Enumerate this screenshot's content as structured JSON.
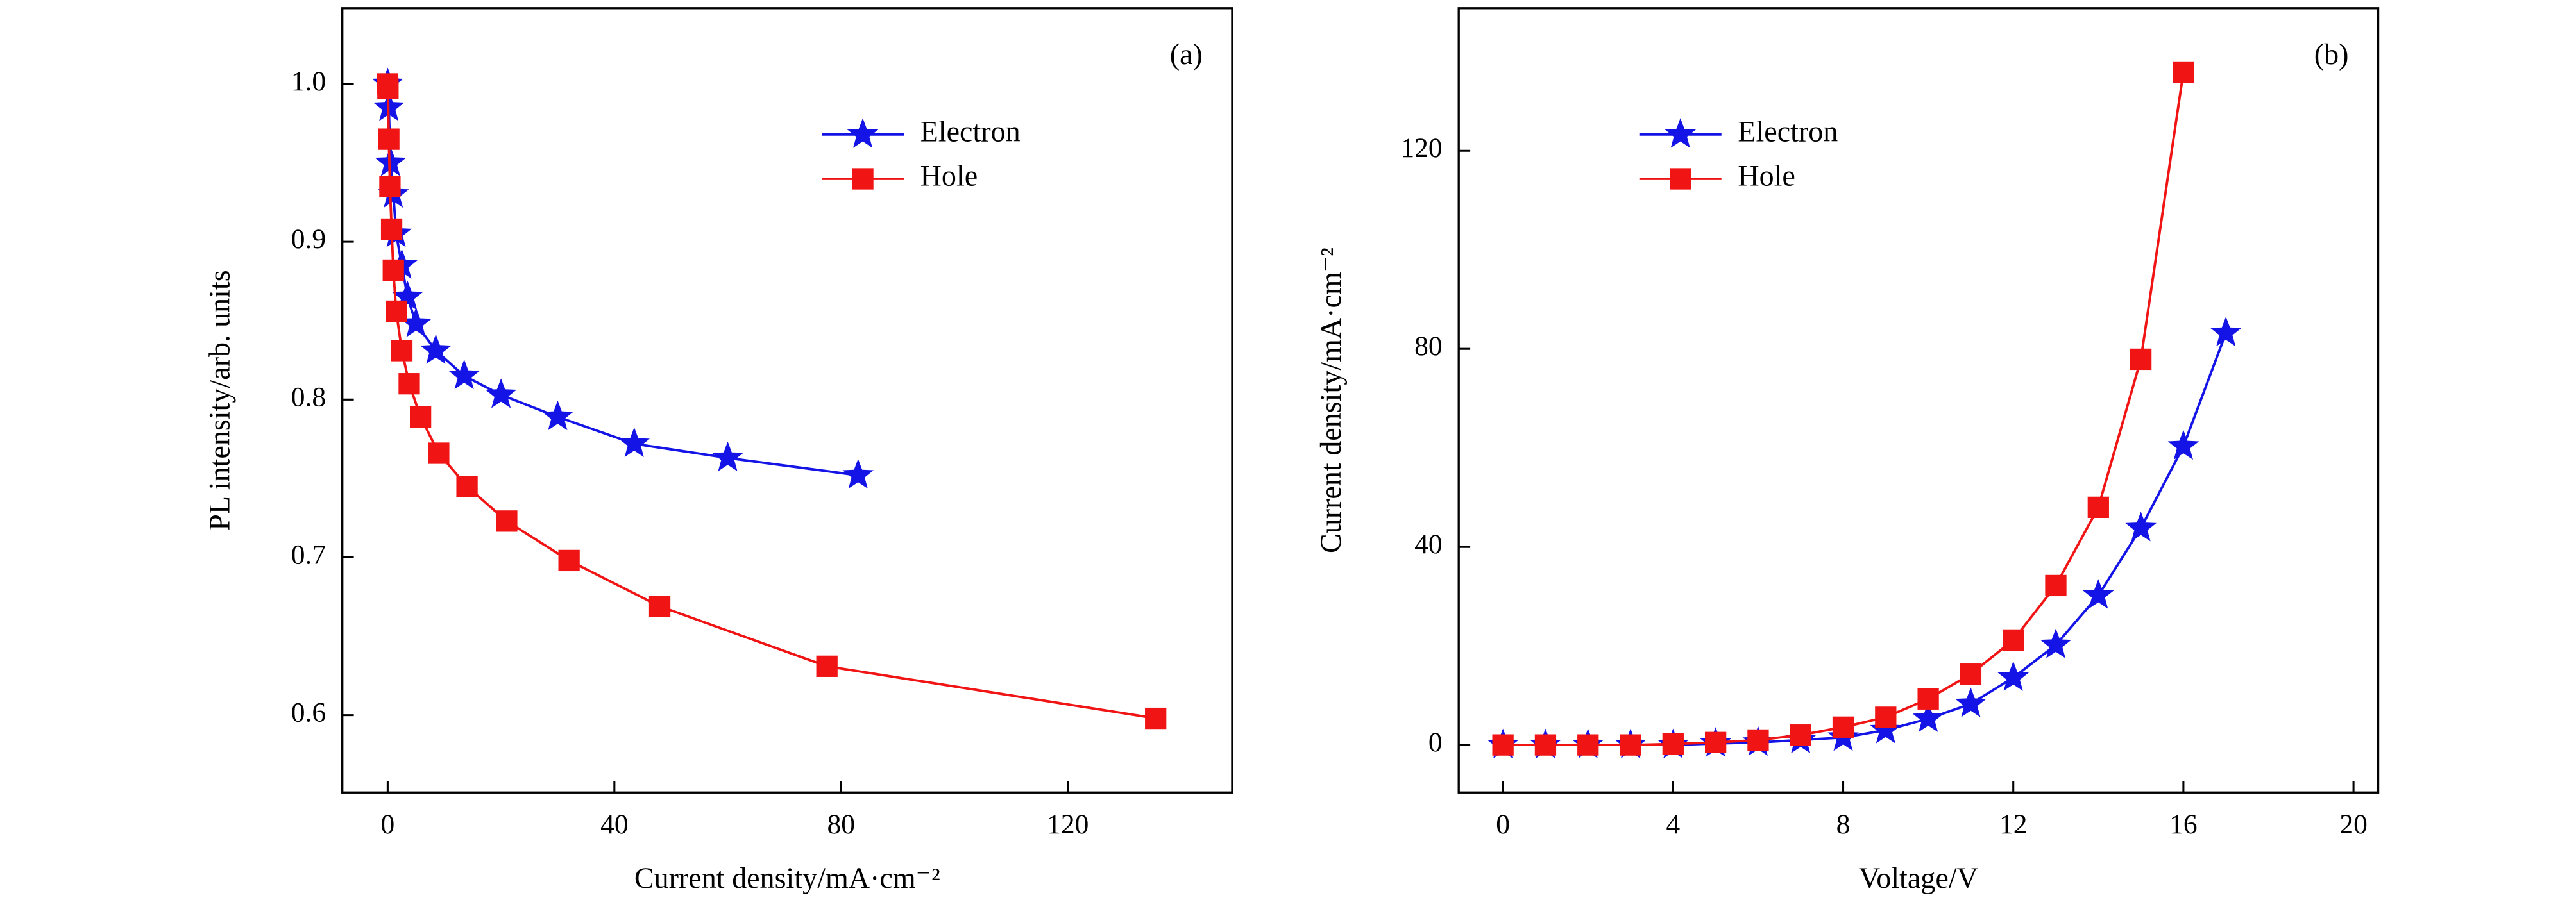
{
  "chart_data": [
    {
      "type": "line",
      "panel": "(a)",
      "xlabel": "Current density/mA·cm⁻²",
      "ylabel": "PL intensity/arb. units",
      "xlim": [
        -8,
        149
      ],
      "ylim": [
        0.551,
        1.048
      ],
      "xticks": [
        0,
        40,
        80,
        120
      ],
      "yticks": [
        0.6,
        0.7,
        0.8,
        0.9,
        {
          "value": 1,
          "label": "1.0"
        }
      ],
      "legend": "upper right",
      "series": [
        {
          "name": "Electron",
          "color": "#1414e6",
          "marker": "star",
          "x": [
            0,
            0.2,
            0.5,
            1,
            1.5,
            2.5,
            3.5,
            5,
            8.5,
            13.5,
            20,
            30,
            43.5,
            60,
            83
          ],
          "values": [
            1.0,
            0.985,
            0.95,
            0.93,
            0.905,
            0.885,
            0.865,
            0.848,
            0.831,
            0.815,
            0.803,
            0.789,
            0.772,
            0.763,
            0.752
          ]
        },
        {
          "name": "Hole",
          "color": "#f01414",
          "marker": "square",
          "x": [
            0,
            0.05,
            0.2,
            0.4,
            0.7,
            1,
            1.5,
            2.5,
            3.8,
            5.8,
            9,
            14,
            21,
            32,
            48,
            77.5,
            135.5
          ],
          "values": [
            1.0,
            0.997,
            0.965,
            0.935,
            0.908,
            0.882,
            0.856,
            0.831,
            0.81,
            0.789,
            0.766,
            0.745,
            0.723,
            0.698,
            0.669,
            0.631,
            0.598
          ]
        }
      ]
    },
    {
      "type": "line",
      "panel": "(b)",
      "xlabel": "Voltage/V",
      "ylabel": "Current density/mA·cm⁻²",
      "xlim": [
        -1.04,
        20.58
      ],
      "ylim": [
        -9.6,
        148.8
      ],
      "xticks": [
        0,
        4,
        8,
        12,
        16,
        20
      ],
      "yticks": [
        0,
        40,
        80,
        120
      ],
      "legend": "upper left",
      "series": [
        {
          "name": "Electron",
          "color": "#1414e6",
          "marker": "star",
          "x": [
            0,
            1,
            2,
            3,
            4,
            5,
            6,
            7,
            8,
            9,
            10,
            11,
            12,
            13,
            14,
            15,
            16,
            17
          ],
          "values": [
            0,
            0,
            0,
            0,
            0,
            0.3,
            0.5,
            1,
            1.5,
            3,
            5.3,
            8.3,
            13.6,
            20.2,
            30.2,
            43.8,
            60.3,
            83.2
          ]
        },
        {
          "name": "Hole",
          "color": "#f01414",
          "marker": "square",
          "x": [
            0,
            1,
            2,
            3,
            4,
            5,
            6,
            7,
            8,
            9,
            10,
            11,
            12,
            13,
            14,
            15,
            16
          ],
          "values": [
            0,
            0,
            0,
            0,
            0.2,
            0.5,
            1,
            2,
            3.6,
            5.6,
            9.3,
            14.3,
            21.2,
            32.2,
            48,
            77.9,
            135.9
          ]
        }
      ]
    }
  ]
}
